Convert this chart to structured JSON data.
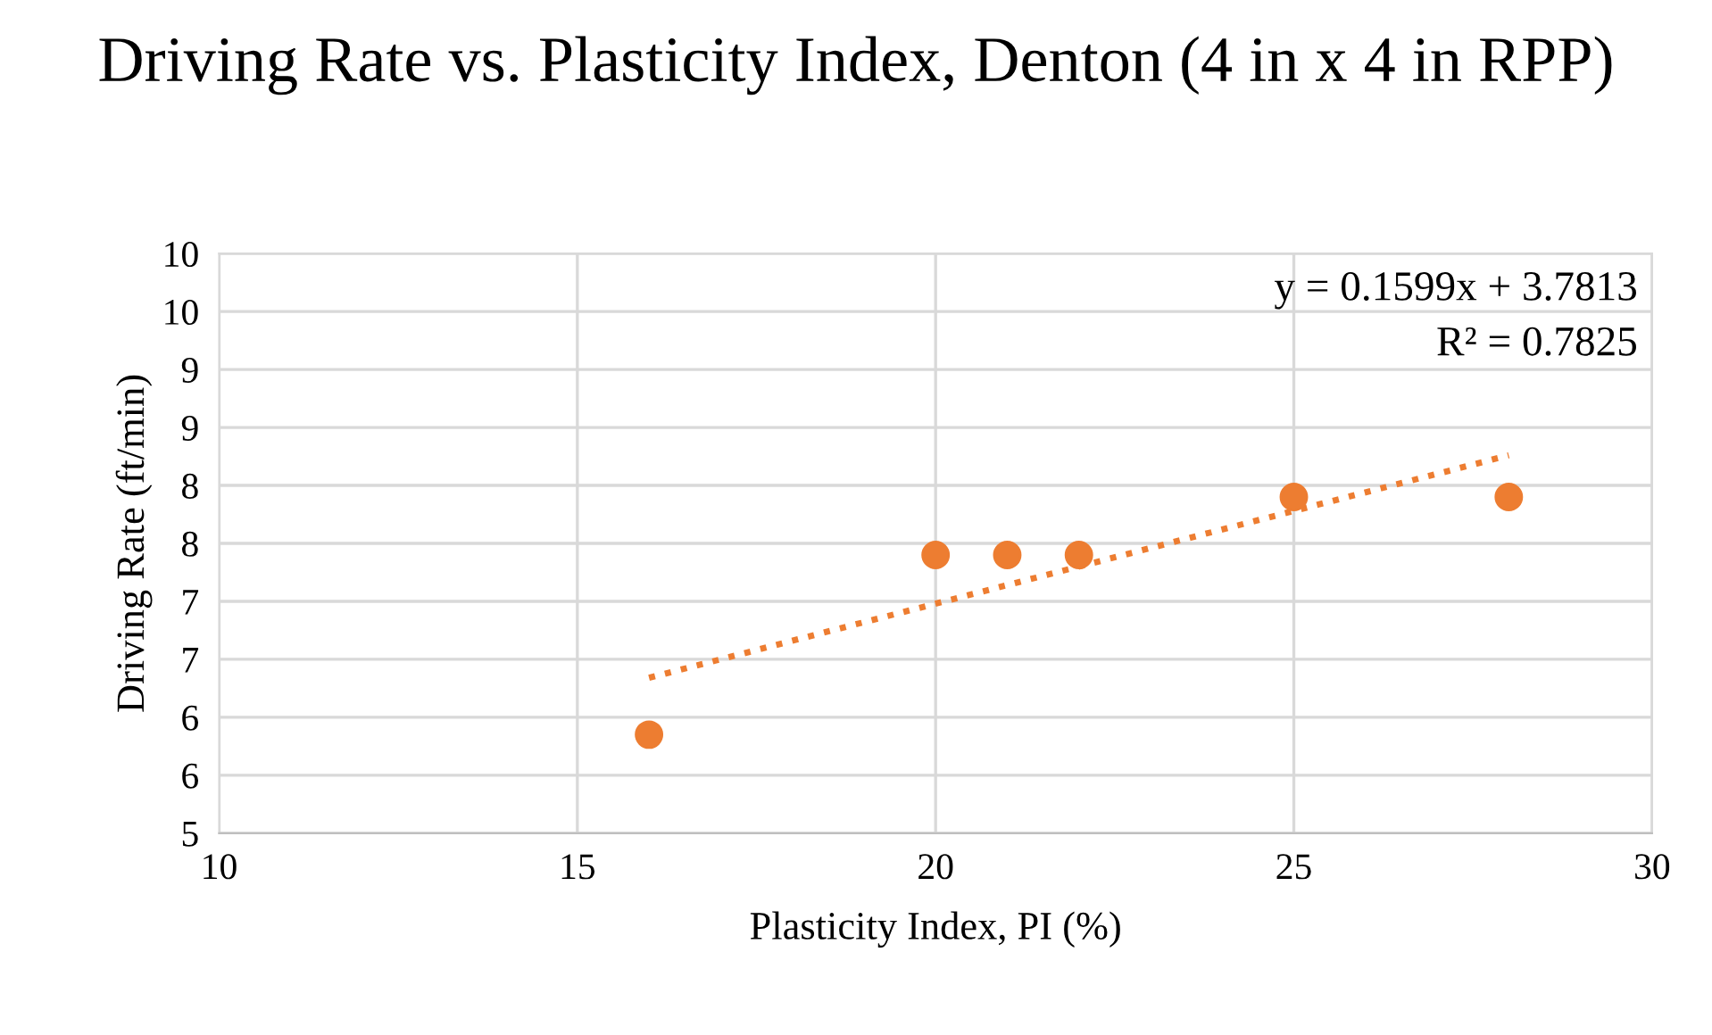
{
  "chart_data": {
    "type": "scatter",
    "title": "Driving Rate vs. Plasticity Index, Denton (4 in x 4 in RPP)",
    "xlabel": "Plasticity Index, PI (%)",
    "ylabel": "Driving Rate (ft/min)",
    "xlim": [
      10,
      30
    ],
    "xticks": [
      10,
      15,
      20,
      25,
      30
    ],
    "ylim": [
      5,
      10
    ],
    "yticks": [
      5,
      {
        "value": 5.5,
        "label": "6"
      },
      6,
      {
        "value": 6.5,
        "label": "7"
      },
      7,
      {
        "value": 7.5,
        "label": "8"
      },
      8,
      {
        "value": 8.5,
        "label": "9"
      },
      9,
      {
        "value": 9.5,
        "label": "10"
      },
      10
    ],
    "grid": true,
    "marker": "circle",
    "series": [
      {
        "color": "#ed7d31",
        "x": [
          16,
          20,
          21,
          22,
          25,
          28
        ],
        "values": [
          5.85,
          7.4,
          7.4,
          7.4,
          7.9,
          7.9
        ]
      },
      {
        "type": "line",
        "color": "#ed7d31",
        "line_style": "dotted",
        "marker": "none",
        "x": [
          16,
          28
        ],
        "values": [
          6.34,
          8.26
        ]
      }
    ],
    "annotations": [
      "y = 0.1599x + 3.7813",
      "R² = 0.7825"
    ]
  }
}
